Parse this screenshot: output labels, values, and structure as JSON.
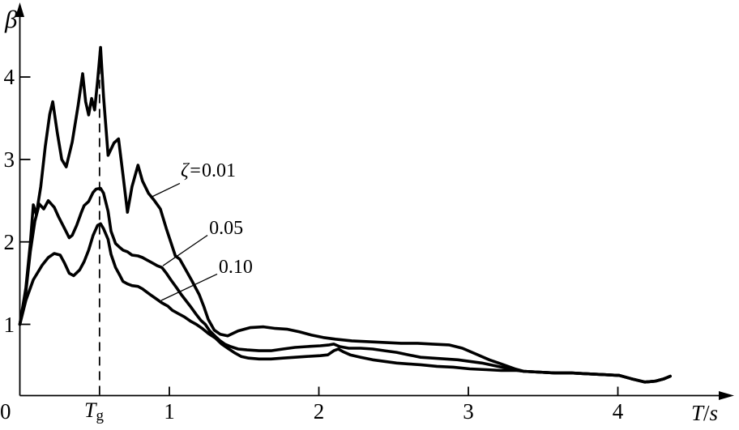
{
  "figure": {
    "background": "#ffffff",
    "ink_color": "#000000",
    "description": "Seismic response spectrum: dynamic amplification factor beta versus period T for damping ratios 0.01, 0.05, 0.10"
  },
  "chart_data": {
    "type": "line",
    "title": "",
    "xlabel": "T/s",
    "xlabel_main": "T",
    "xlabel_sep": "/",
    "xlabel_unit": "s",
    "ylabel": "β",
    "origin_label": "0",
    "x_ticks": [
      1,
      2,
      3,
      4
    ],
    "x_tick_labels": [
      "1",
      "2",
      "3",
      "4"
    ],
    "y_ticks": [
      1,
      2,
      3,
      4
    ],
    "y_tick_labels": [
      "1",
      "2",
      "3",
      "4"
    ],
    "xlim": [
      0,
      4.75
    ],
    "ylim": [
      0.1,
      4.8
    ],
    "grid": false,
    "legend_position": "inline-annotations",
    "tg_line": {
      "T": 0.533,
      "label_main": "T",
      "label_sub": "g",
      "style": "dashed-vertical"
    },
    "series": [
      {
        "name": "zeta=0.01",
        "damping": "0.01",
        "label": "ζ=0.01",
        "label_zeta": "ζ=",
        "label_value": "0.01",
        "label_pos": [
          1.076,
          2.99
        ],
        "leader": [
          [
            1.07,
            2.71
          ],
          [
            0.875,
            2.54
          ]
        ],
        "points": [
          [
            0,
            1.0
          ],
          [
            0.04,
            1.44
          ],
          [
            0.07,
            1.98
          ],
          [
            0.09,
            2.45
          ],
          [
            0.11,
            2.33
          ],
          [
            0.14,
            2.67
          ],
          [
            0.17,
            3.16
          ],
          [
            0.2,
            3.55
          ],
          [
            0.22,
            3.7
          ],
          [
            0.25,
            3.33
          ],
          [
            0.28,
            3.0
          ],
          [
            0.31,
            2.91
          ],
          [
            0.35,
            3.21
          ],
          [
            0.39,
            3.66
          ],
          [
            0.42,
            4.04
          ],
          [
            0.44,
            3.7
          ],
          [
            0.46,
            3.54
          ],
          [
            0.48,
            3.74
          ],
          [
            0.5,
            3.6
          ],
          [
            0.52,
            3.95
          ],
          [
            0.54,
            4.36
          ],
          [
            0.56,
            3.76
          ],
          [
            0.59,
            3.05
          ],
          [
            0.63,
            3.2
          ],
          [
            0.66,
            3.25
          ],
          [
            0.69,
            2.81
          ],
          [
            0.72,
            2.36
          ],
          [
            0.75,
            2.67
          ],
          [
            0.79,
            2.93
          ],
          [
            0.82,
            2.74
          ],
          [
            0.86,
            2.59
          ],
          [
            0.9,
            2.5
          ],
          [
            0.94,
            2.4
          ],
          [
            0.98,
            2.16
          ],
          [
            1.0,
            2.05
          ],
          [
            1.04,
            1.83
          ],
          [
            1.07,
            1.79
          ],
          [
            1.11,
            1.66
          ],
          [
            1.15,
            1.53
          ],
          [
            1.2,
            1.36
          ],
          [
            1.23,
            1.22
          ],
          [
            1.26,
            1.06
          ],
          [
            1.3,
            0.93
          ],
          [
            1.34,
            0.88
          ],
          [
            1.39,
            0.86
          ],
          [
            1.46,
            0.92
          ],
          [
            1.54,
            0.96
          ],
          [
            1.63,
            0.97
          ],
          [
            1.71,
            0.95
          ],
          [
            1.79,
            0.94
          ],
          [
            1.87,
            0.91
          ],
          [
            1.95,
            0.87
          ],
          [
            2.03,
            0.84
          ],
          [
            2.11,
            0.82
          ],
          [
            2.22,
            0.8
          ],
          [
            2.33,
            0.79
          ],
          [
            2.44,
            0.78
          ],
          [
            2.55,
            0.77
          ],
          [
            2.66,
            0.77
          ],
          [
            2.76,
            0.76
          ],
          [
            2.87,
            0.75
          ],
          [
            2.96,
            0.71
          ],
          [
            3.05,
            0.64
          ],
          [
            3.14,
            0.57
          ],
          [
            3.22,
            0.52
          ],
          [
            3.31,
            0.46
          ],
          [
            3.37,
            0.43
          ],
          [
            3.47,
            0.42
          ],
          [
            3.58,
            0.41
          ],
          [
            3.69,
            0.41
          ],
          [
            3.79,
            0.4
          ],
          [
            3.9,
            0.39
          ],
          [
            4.01,
            0.38
          ],
          [
            4.09,
            0.34
          ],
          [
            4.18,
            0.3
          ],
          [
            4.25,
            0.31
          ],
          [
            4.31,
            0.34
          ],
          [
            4.35,
            0.37
          ]
        ]
      },
      {
        "name": "zeta=0.05",
        "damping": "0.05",
        "label": "0.05",
        "label_zeta": "",
        "label_value": "0.05",
        "label_pos": [
          1.266,
          2.29
        ],
        "leader": [
          [
            1.255,
            2.08
          ],
          [
            0.957,
            1.71
          ]
        ],
        "points": [
          [
            0,
            1.0
          ],
          [
            0.04,
            1.39
          ],
          [
            0.07,
            1.88
          ],
          [
            0.1,
            2.25
          ],
          [
            0.13,
            2.46
          ],
          [
            0.16,
            2.4
          ],
          [
            0.19,
            2.5
          ],
          [
            0.23,
            2.42
          ],
          [
            0.26,
            2.3
          ],
          [
            0.3,
            2.16
          ],
          [
            0.33,
            2.05
          ],
          [
            0.35,
            2.08
          ],
          [
            0.38,
            2.2
          ],
          [
            0.41,
            2.35
          ],
          [
            0.43,
            2.44
          ],
          [
            0.46,
            2.49
          ],
          [
            0.49,
            2.6
          ],
          [
            0.51,
            2.64
          ],
          [
            0.54,
            2.65
          ],
          [
            0.56,
            2.59
          ],
          [
            0.59,
            2.37
          ],
          [
            0.61,
            2.13
          ],
          [
            0.64,
            1.98
          ],
          [
            0.67,
            1.93
          ],
          [
            0.69,
            1.9
          ],
          [
            0.72,
            1.88
          ],
          [
            0.75,
            1.84
          ],
          [
            0.79,
            1.83
          ],
          [
            0.82,
            1.81
          ],
          [
            0.85,
            1.78
          ],
          [
            0.88,
            1.75
          ],
          [
            0.92,
            1.71
          ],
          [
            0.95,
            1.69
          ],
          [
            0.98,
            1.62
          ],
          [
            1.01,
            1.54
          ],
          [
            1.05,
            1.44
          ],
          [
            1.08,
            1.36
          ],
          [
            1.11,
            1.29
          ],
          [
            1.14,
            1.22
          ],
          [
            1.18,
            1.12
          ],
          [
            1.21,
            1.05
          ],
          [
            1.24,
            1.0
          ],
          [
            1.27,
            0.92
          ],
          [
            1.31,
            0.85
          ],
          [
            1.34,
            0.8
          ],
          [
            1.37,
            0.76
          ],
          [
            1.41,
            0.73
          ],
          [
            1.46,
            0.7
          ],
          [
            1.52,
            0.69
          ],
          [
            1.6,
            0.68
          ],
          [
            1.68,
            0.68
          ],
          [
            1.76,
            0.7
          ],
          [
            1.84,
            0.72
          ],
          [
            1.92,
            0.73
          ],
          [
            2.01,
            0.74
          ],
          [
            2.07,
            0.75
          ],
          [
            2.1,
            0.76
          ],
          [
            2.14,
            0.73
          ],
          [
            2.2,
            0.71
          ],
          [
            2.28,
            0.71
          ],
          [
            2.36,
            0.7
          ],
          [
            2.44,
            0.68
          ],
          [
            2.52,
            0.66
          ],
          [
            2.6,
            0.63
          ],
          [
            2.68,
            0.6
          ],
          [
            2.76,
            0.59
          ],
          [
            2.85,
            0.58
          ],
          [
            2.93,
            0.57
          ],
          [
            3.01,
            0.55
          ],
          [
            3.09,
            0.53
          ],
          [
            3.17,
            0.5
          ],
          [
            3.25,
            0.47
          ],
          [
            3.33,
            0.44
          ],
          [
            3.37,
            0.43
          ],
          [
            3.47,
            0.42
          ],
          [
            3.58,
            0.41
          ],
          [
            3.69,
            0.41
          ],
          [
            3.79,
            0.4
          ],
          [
            3.9,
            0.39
          ],
          [
            4.01,
            0.38
          ],
          [
            4.09,
            0.34
          ],
          [
            4.18,
            0.3
          ],
          [
            4.25,
            0.31
          ],
          [
            4.31,
            0.34
          ],
          [
            4.35,
            0.37
          ]
        ]
      },
      {
        "name": "zeta=0.10",
        "damping": "0.10",
        "label": "0.10",
        "label_zeta": "",
        "label_value": "0.10",
        "label_pos": [
          1.33,
          1.82
        ],
        "leader": [
          [
            1.32,
            1.61
          ],
          [
            0.946,
            1.29
          ]
        ],
        "points": [
          [
            0,
            1.0
          ],
          [
            0.04,
            1.29
          ],
          [
            0.09,
            1.54
          ],
          [
            0.15,
            1.72
          ],
          [
            0.19,
            1.81
          ],
          [
            0.23,
            1.86
          ],
          [
            0.27,
            1.84
          ],
          [
            0.3,
            1.74
          ],
          [
            0.33,
            1.62
          ],
          [
            0.36,
            1.59
          ],
          [
            0.4,
            1.66
          ],
          [
            0.43,
            1.76
          ],
          [
            0.46,
            1.9
          ],
          [
            0.49,
            2.08
          ],
          [
            0.52,
            2.2
          ],
          [
            0.54,
            2.22
          ],
          [
            0.56,
            2.16
          ],
          [
            0.59,
            2.03
          ],
          [
            0.61,
            1.85
          ],
          [
            0.64,
            1.69
          ],
          [
            0.67,
            1.59
          ],
          [
            0.69,
            1.52
          ],
          [
            0.72,
            1.49
          ],
          [
            0.75,
            1.47
          ],
          [
            0.79,
            1.46
          ],
          [
            0.82,
            1.43
          ],
          [
            0.85,
            1.39
          ],
          [
            0.88,
            1.35
          ],
          [
            0.92,
            1.3
          ],
          [
            0.95,
            1.26
          ],
          [
            0.99,
            1.22
          ],
          [
            1.02,
            1.17
          ],
          [
            1.06,
            1.13
          ],
          [
            1.1,
            1.09
          ],
          [
            1.14,
            1.04
          ],
          [
            1.18,
            1.0
          ],
          [
            1.22,
            0.95
          ],
          [
            1.26,
            0.89
          ],
          [
            1.31,
            0.83
          ],
          [
            1.35,
            0.76
          ],
          [
            1.39,
            0.71
          ],
          [
            1.44,
            0.65
          ],
          [
            1.48,
            0.61
          ],
          [
            1.53,
            0.59
          ],
          [
            1.6,
            0.58
          ],
          [
            1.68,
            0.58
          ],
          [
            1.76,
            0.59
          ],
          [
            1.84,
            0.6
          ],
          [
            1.92,
            0.61
          ],
          [
            2.01,
            0.62
          ],
          [
            2.06,
            0.63
          ],
          [
            2.1,
            0.68
          ],
          [
            2.13,
            0.7
          ],
          [
            2.16,
            0.67
          ],
          [
            2.21,
            0.63
          ],
          [
            2.28,
            0.6
          ],
          [
            2.36,
            0.57
          ],
          [
            2.44,
            0.55
          ],
          [
            2.52,
            0.53
          ],
          [
            2.6,
            0.52
          ],
          [
            2.68,
            0.51
          ],
          [
            2.79,
            0.49
          ],
          [
            2.9,
            0.48
          ],
          [
            3.01,
            0.46
          ],
          [
            3.12,
            0.45
          ],
          [
            3.22,
            0.44
          ],
          [
            3.33,
            0.44
          ],
          [
            3.37,
            0.43
          ],
          [
            3.47,
            0.42
          ],
          [
            3.58,
            0.41
          ],
          [
            3.69,
            0.41
          ],
          [
            3.79,
            0.4
          ],
          [
            3.9,
            0.39
          ],
          [
            4.01,
            0.38
          ],
          [
            4.09,
            0.34
          ],
          [
            4.18,
            0.3
          ],
          [
            4.25,
            0.31
          ],
          [
            4.31,
            0.34
          ],
          [
            4.35,
            0.37
          ]
        ]
      }
    ]
  }
}
